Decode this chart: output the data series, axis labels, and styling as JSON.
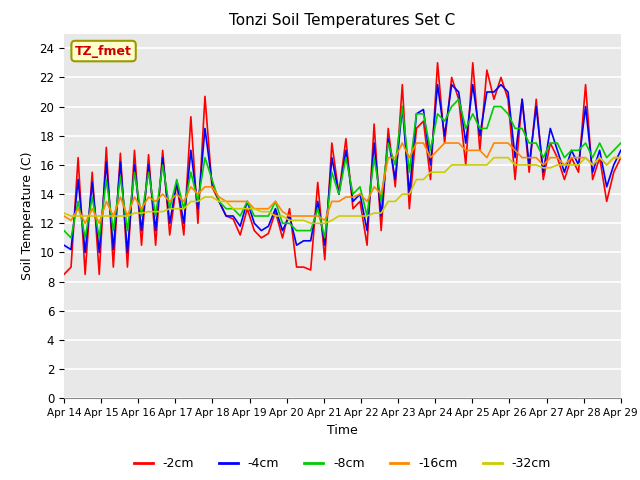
{
  "title": "Tonzi Soil Temperatures Set C",
  "xlabel": "Time",
  "ylabel": "Soil Temperature (C)",
  "annotation": "TZ_fmet",
  "ylim": [
    0,
    25
  ],
  "yticks": [
    0,
    2,
    4,
    6,
    8,
    10,
    12,
    14,
    16,
    18,
    20,
    22,
    24
  ],
  "xtick_labels": [
    "Apr 14",
    "Apr 15",
    "Apr 16",
    "Apr 17",
    "Apr 18",
    "Apr 19",
    "Apr 20",
    "Apr 21",
    "Apr 22",
    "Apr 23",
    "Apr 24",
    "Apr 25",
    "Apr 26",
    "Apr 27",
    "Apr 28",
    "Apr 29"
  ],
  "series": {
    "-2cm": {
      "color": "#ff0000",
      "data": [
        8.5,
        9.0,
        16.5,
        8.5,
        15.5,
        8.5,
        17.2,
        9.0,
        16.8,
        9.0,
        17.0,
        10.5,
        16.7,
        10.5,
        17.0,
        11.2,
        14.8,
        11.2,
        19.3,
        12.0,
        20.7,
        14.5,
        13.5,
        12.5,
        12.3,
        11.2,
        13.0,
        11.5,
        11.0,
        11.3,
        12.8,
        11.0,
        13.0,
        9.0,
        9.0,
        8.8,
        14.8,
        9.5,
        17.5,
        14.0,
        17.8,
        13.0,
        13.5,
        10.5,
        18.8,
        11.5,
        18.5,
        14.5,
        21.5,
        13.0,
        18.5,
        19.0,
        15.0,
        23.0,
        17.5,
        22.0,
        20.5,
        16.0,
        23.0,
        17.0,
        22.5,
        20.5,
        22.0,
        20.5,
        15.0,
        20.5,
        15.5,
        20.5,
        15.0,
        17.5,
        16.5,
        15.0,
        16.5,
        15.5,
        21.5,
        15.0,
        16.5,
        13.5,
        15.5,
        16.5
      ]
    },
    "-4cm": {
      "color": "#0000ff",
      "data": [
        10.5,
        10.2,
        15.0,
        10.0,
        14.8,
        10.0,
        16.2,
        10.2,
        16.2,
        10.0,
        16.0,
        11.5,
        16.0,
        11.5,
        16.5,
        12.0,
        14.8,
        12.0,
        17.0,
        13.0,
        18.5,
        14.8,
        13.5,
        12.5,
        12.5,
        11.8,
        13.5,
        12.0,
        11.5,
        11.8,
        13.0,
        11.5,
        12.5,
        10.5,
        10.8,
        10.8,
        13.5,
        10.5,
        16.5,
        14.0,
        17.0,
        13.5,
        14.0,
        11.5,
        17.5,
        12.5,
        17.8,
        15.0,
        20.0,
        14.0,
        19.5,
        19.8,
        16.0,
        21.5,
        18.0,
        21.5,
        21.0,
        17.5,
        21.5,
        18.0,
        21.0,
        21.0,
        21.5,
        21.0,
        16.5,
        20.5,
        16.0,
        20.0,
        15.5,
        18.5,
        17.0,
        15.5,
        17.0,
        16.0,
        20.0,
        15.5,
        17.0,
        14.5,
        16.0,
        17.0
      ]
    },
    "-8cm": {
      "color": "#00cc00",
      "data": [
        11.5,
        11.0,
        13.5,
        11.0,
        13.8,
        11.0,
        15.0,
        11.5,
        15.2,
        11.5,
        15.5,
        12.5,
        15.5,
        12.5,
        16.0,
        13.0,
        15.0,
        13.0,
        15.5,
        13.5,
        16.5,
        15.0,
        13.5,
        13.0,
        13.0,
        12.5,
        13.5,
        12.5,
        12.5,
        12.5,
        13.5,
        12.0,
        12.0,
        11.5,
        11.5,
        11.5,
        13.0,
        11.0,
        15.5,
        14.0,
        16.5,
        14.0,
        14.5,
        12.5,
        16.5,
        13.5,
        17.5,
        16.0,
        20.0,
        15.5,
        19.5,
        19.5,
        17.0,
        19.5,
        19.0,
        20.0,
        20.5,
        18.5,
        19.5,
        18.5,
        18.5,
        20.0,
        20.0,
        19.5,
        18.5,
        18.5,
        17.5,
        17.5,
        16.5,
        17.5,
        17.5,
        16.5,
        17.0,
        17.0,
        17.5,
        16.5,
        17.5,
        16.5,
        17.0,
        17.5
      ]
    },
    "-16cm": {
      "color": "#ff8800",
      "data": [
        12.5,
        12.2,
        13.0,
        12.0,
        13.0,
        12.0,
        13.5,
        12.5,
        13.8,
        12.5,
        13.8,
        13.0,
        13.8,
        13.5,
        14.0,
        13.5,
        14.0,
        13.5,
        14.5,
        14.0,
        14.5,
        14.5,
        13.8,
        13.5,
        13.5,
        13.5,
        13.5,
        13.0,
        13.0,
        13.0,
        13.5,
        12.8,
        12.5,
        12.5,
        12.5,
        12.5,
        12.5,
        12.2,
        13.5,
        13.5,
        13.8,
        13.8,
        14.0,
        13.5,
        14.5,
        14.0,
        16.5,
        16.5,
        17.5,
        16.5,
        17.5,
        17.5,
        16.5,
        17.0,
        17.5,
        17.5,
        17.5,
        17.0,
        17.0,
        17.0,
        16.5,
        17.5,
        17.5,
        17.5,
        17.0,
        16.5,
        16.5,
        16.5,
        16.0,
        16.5,
        16.5,
        16.0,
        16.5,
        16.5,
        16.5,
        16.0,
        16.5,
        16.0,
        16.5,
        16.5
      ]
    },
    "-32cm": {
      "color": "#cccc00",
      "data": [
        12.7,
        12.5,
        12.5,
        12.5,
        12.5,
        12.5,
        12.5,
        12.5,
        12.5,
        12.5,
        12.7,
        12.7,
        12.8,
        12.8,
        12.8,
        13.0,
        13.0,
        13.0,
        13.5,
        13.5,
        13.8,
        13.8,
        13.5,
        13.5,
        13.0,
        13.0,
        13.0,
        13.0,
        12.8,
        12.8,
        12.5,
        12.5,
        12.2,
        12.2,
        12.2,
        12.0,
        12.0,
        12.0,
        12.2,
        12.5,
        12.5,
        12.5,
        12.5,
        12.5,
        12.7,
        12.7,
        13.5,
        13.5,
        14.0,
        14.0,
        15.0,
        15.0,
        15.5,
        15.5,
        15.5,
        16.0,
        16.0,
        16.0,
        16.0,
        16.0,
        16.0,
        16.5,
        16.5,
        16.5,
        16.0,
        16.0,
        16.0,
        16.0,
        15.8,
        15.8,
        16.0,
        16.0,
        16.0,
        16.0,
        16.5,
        16.0,
        16.5,
        16.0,
        16.5,
        16.5
      ]
    }
  },
  "legend_labels": [
    "-2cm",
    "-4cm",
    "-8cm",
    "-16cm",
    "-32cm"
  ],
  "legend_colors": [
    "#ff0000",
    "#0000ff",
    "#00cc00",
    "#ff8800",
    "#cccc00"
  ],
  "bg_color": "#e8e8e8",
  "fig_bg_color": "#ffffff",
  "n_points": 80
}
